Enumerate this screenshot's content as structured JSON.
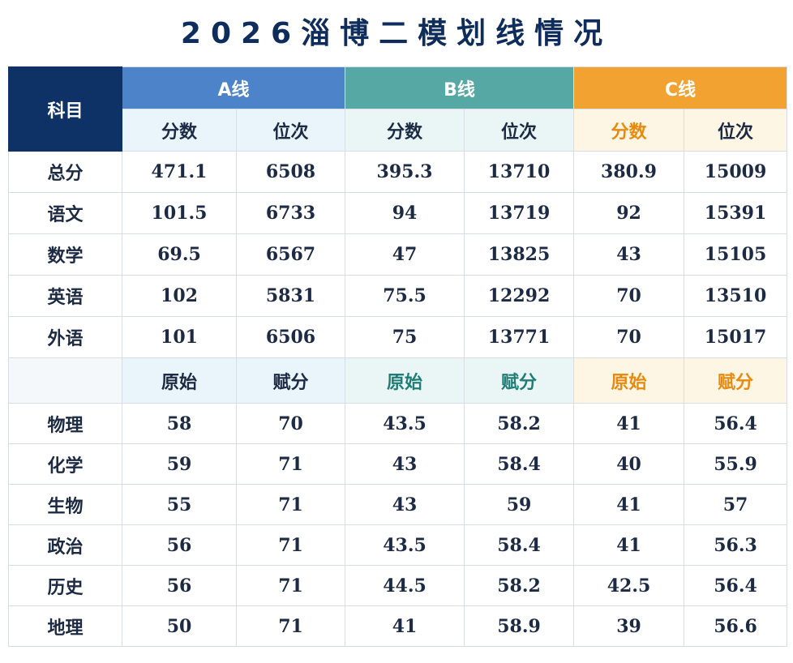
{
  "title": "2026淄博二模划线情况",
  "header": {
    "subject_label": "科目",
    "a": "A线",
    "b": "B线",
    "c": "C线",
    "score": "分数",
    "rank": "位次",
    "raw": "原始",
    "assigned": "赋分"
  },
  "colors": {
    "corner": "#0f3266",
    "a_header": "#4d83c9",
    "b_header": "#56a8a4",
    "c_header": "#f1a230",
    "b_sub_text": "#1f7d76",
    "c_sub_text": "#e88a10"
  },
  "rows_top": [
    {
      "subject": "总分",
      "a_score": "471.1",
      "a_rank": "6508",
      "b_score": "395.3",
      "b_rank": "13710",
      "c_score": "380.9",
      "c_rank": "15009"
    },
    {
      "subject": "语文",
      "a_score": "101.5",
      "a_rank": "6733",
      "b_score": "94",
      "b_rank": "13719",
      "c_score": "92",
      "c_rank": "15391"
    },
    {
      "subject": "数学",
      "a_score": "69.5",
      "a_rank": "6567",
      "b_score": "47",
      "b_rank": "13825",
      "c_score": "43",
      "c_rank": "15105"
    },
    {
      "subject": "英语",
      "a_score": "102",
      "a_rank": "5831",
      "b_score": "75.5",
      "b_rank": "12292",
      "c_score": "70",
      "c_rank": "13510"
    },
    {
      "subject": "外语",
      "a_score": "101",
      "a_rank": "6506",
      "b_score": "75",
      "b_rank": "13771",
      "c_score": "70",
      "c_rank": "15017"
    }
  ],
  "rows_bottom": [
    {
      "subject": "物理",
      "a_raw": "58",
      "a_assigned": "70",
      "b_raw": "43.5",
      "b_assigned": "58.2",
      "c_raw": "41",
      "c_assigned": "56.4"
    },
    {
      "subject": "化学",
      "a_raw": "59",
      "a_assigned": "71",
      "b_raw": "43",
      "b_assigned": "58.4",
      "c_raw": "40",
      "c_assigned": "55.9"
    },
    {
      "subject": "生物",
      "a_raw": "55",
      "a_assigned": "71",
      "b_raw": "43",
      "b_assigned": "59",
      "c_raw": "41",
      "c_assigned": "57"
    },
    {
      "subject": "政治",
      "a_raw": "56",
      "a_assigned": "71",
      "b_raw": "43.5",
      "b_assigned": "58.4",
      "c_raw": "41",
      "c_assigned": "56.3"
    },
    {
      "subject": "历史",
      "a_raw": "56",
      "a_assigned": "71",
      "b_raw": "44.5",
      "b_assigned": "58.2",
      "c_raw": "42.5",
      "c_assigned": "56.4"
    },
    {
      "subject": "地理",
      "a_raw": "50",
      "a_assigned": "71",
      "b_raw": "41",
      "b_assigned": "58.9",
      "c_raw": "39",
      "c_assigned": "56.6"
    }
  ]
}
